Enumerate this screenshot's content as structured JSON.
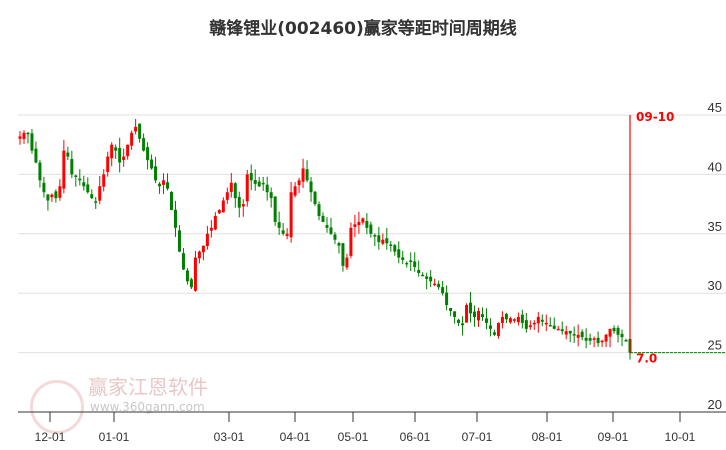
{
  "title": "赣锋锂业(002460)赢家等距时间周期线",
  "watermark": {
    "brand": "赢家江恩软件",
    "url": "www.360gann.com",
    "seal": "江恩赢家"
  },
  "colors": {
    "up": "#ff0000",
    "down": "#008000",
    "grid": "#e0e0e0",
    "marker": "#ff0000"
  },
  "chart_data": {
    "type": "candlestick",
    "title": "赣锋锂业(002460)赢家等距时间周期线",
    "ylim": [
      20,
      45
    ],
    "yticks": [
      "45",
      "40",
      "35",
      "30",
      "25",
      "20"
    ],
    "xticks": [
      "12-01",
      "01-01",
      "03-01",
      "04-01",
      "05-01",
      "06-01",
      "07-01",
      "08-01",
      "09-01",
      "10-01"
    ],
    "grid": true,
    "closes": [
      43.2,
      43.5,
      43.4,
      42.0,
      41.0,
      39.5,
      38.5,
      37.8,
      38.3,
      38.0,
      39.0,
      42.0,
      41.5,
      40.0,
      39.8,
      39.5,
      39.0,
      38.5,
      38.0,
      37.7,
      39.0,
      40.0,
      41.5,
      42.5,
      42.0,
      41.0,
      41.5,
      42.5,
      43.5,
      44.0,
      43.0,
      42.0,
      41.2,
      40.5,
      39.5,
      39.0,
      39.5,
      38.8,
      37.0,
      35.5,
      33.5,
      32.0,
      31.0,
      30.5,
      33.0,
      33.5,
      34.0,
      35.0,
      35.5,
      36.5,
      37.0,
      37.8,
      38.5,
      39.3,
      38.0,
      37.2,
      37.5,
      40.0,
      39.5,
      39.2,
      39.0,
      39.2,
      38.5,
      38.0,
      36.0,
      35.5,
      35.0,
      35.0,
      38.5,
      39.0,
      39.5,
      40.5,
      39.5,
      38.5,
      37.5,
      36.5,
      36.0,
      35.5,
      35.0,
      34.5,
      34.0,
      32.3,
      33.0,
      35.5,
      35.8,
      36.0,
      36.3,
      35.5,
      35.0,
      34.8,
      34.3,
      34.5,
      34.2,
      34.0,
      33.5,
      33.0,
      32.8,
      32.5,
      32.7,
      32.2,
      31.7,
      31.5,
      31.2,
      31.0,
      30.8,
      30.5,
      30.0,
      29.0,
      28.5,
      28.0,
      27.5,
      27.3,
      29.0,
      28.3,
      28.0,
      28.5,
      28.0,
      27.5,
      27.0,
      26.5,
      27.5,
      28.0,
      27.8,
      27.9,
      27.8,
      28.0,
      27.5,
      27.0,
      27.3,
      27.5,
      28.0,
      27.6,
      27.5,
      27.3,
      27.0,
      27.0,
      26.8,
      26.8,
      26.6,
      26.5,
      26.5,
      26.3,
      26.0,
      26.0,
      26.2,
      25.8,
      26.0,
      26.5,
      27.0,
      26.8,
      26.5,
      26.3,
      26.0,
      25.0
    ],
    "annotations": {
      "date_marker": "09-10",
      "level_label": "7.0",
      "level_value": 25.0
    }
  }
}
